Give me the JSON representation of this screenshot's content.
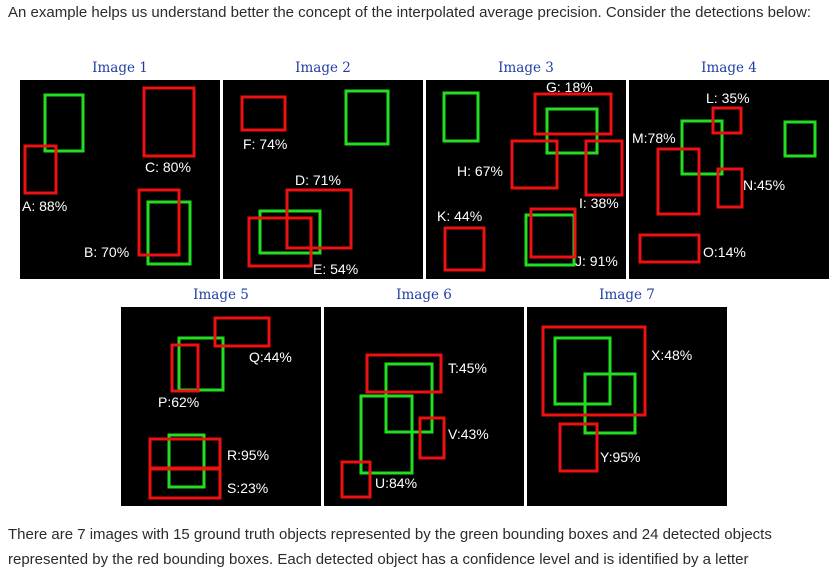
{
  "intro": "An example helps us understand better the concept of the interpolated average precision. Consider the detections below:",
  "outro": "There are 7 images with 15 ground truth objects represented by the green bounding boxes and 24 detected objects represented by the red bounding boxes. Each detected object has a confidence level and is identified by a letter",
  "colors": {
    "ground_truth": "#22dd22",
    "detection": "#ee1111",
    "panel_bg": "#000000",
    "caption": "#1f3fa3"
  },
  "images": [
    {
      "caption": "Image 1",
      "labels": [
        "C: 80%",
        "A: 88%",
        "B: 70%"
      ]
    },
    {
      "caption": "Image 2",
      "labels": [
        "F: 74%",
        "D: 71%",
        "E: 54%"
      ]
    },
    {
      "caption": "Image 3",
      "labels": [
        "G: 18%",
        "H: 67%",
        "I: 38%",
        "K: 44%",
        "J: 91%"
      ]
    },
    {
      "caption": "Image 4",
      "labels": [
        "L: 35%",
        "M:78%",
        "N:45%",
        "O:14%"
      ]
    },
    {
      "caption": "Image 5",
      "labels": [
        "Q:44%",
        "P:62%",
        "R:95%",
        "S:23%"
      ]
    },
    {
      "caption": "Image 6",
      "labels": [
        "T:45%",
        "V:43%",
        "U:84%"
      ]
    },
    {
      "caption": "Image 7",
      "labels": [
        "X:48%",
        "Y:95%"
      ]
    }
  ]
}
